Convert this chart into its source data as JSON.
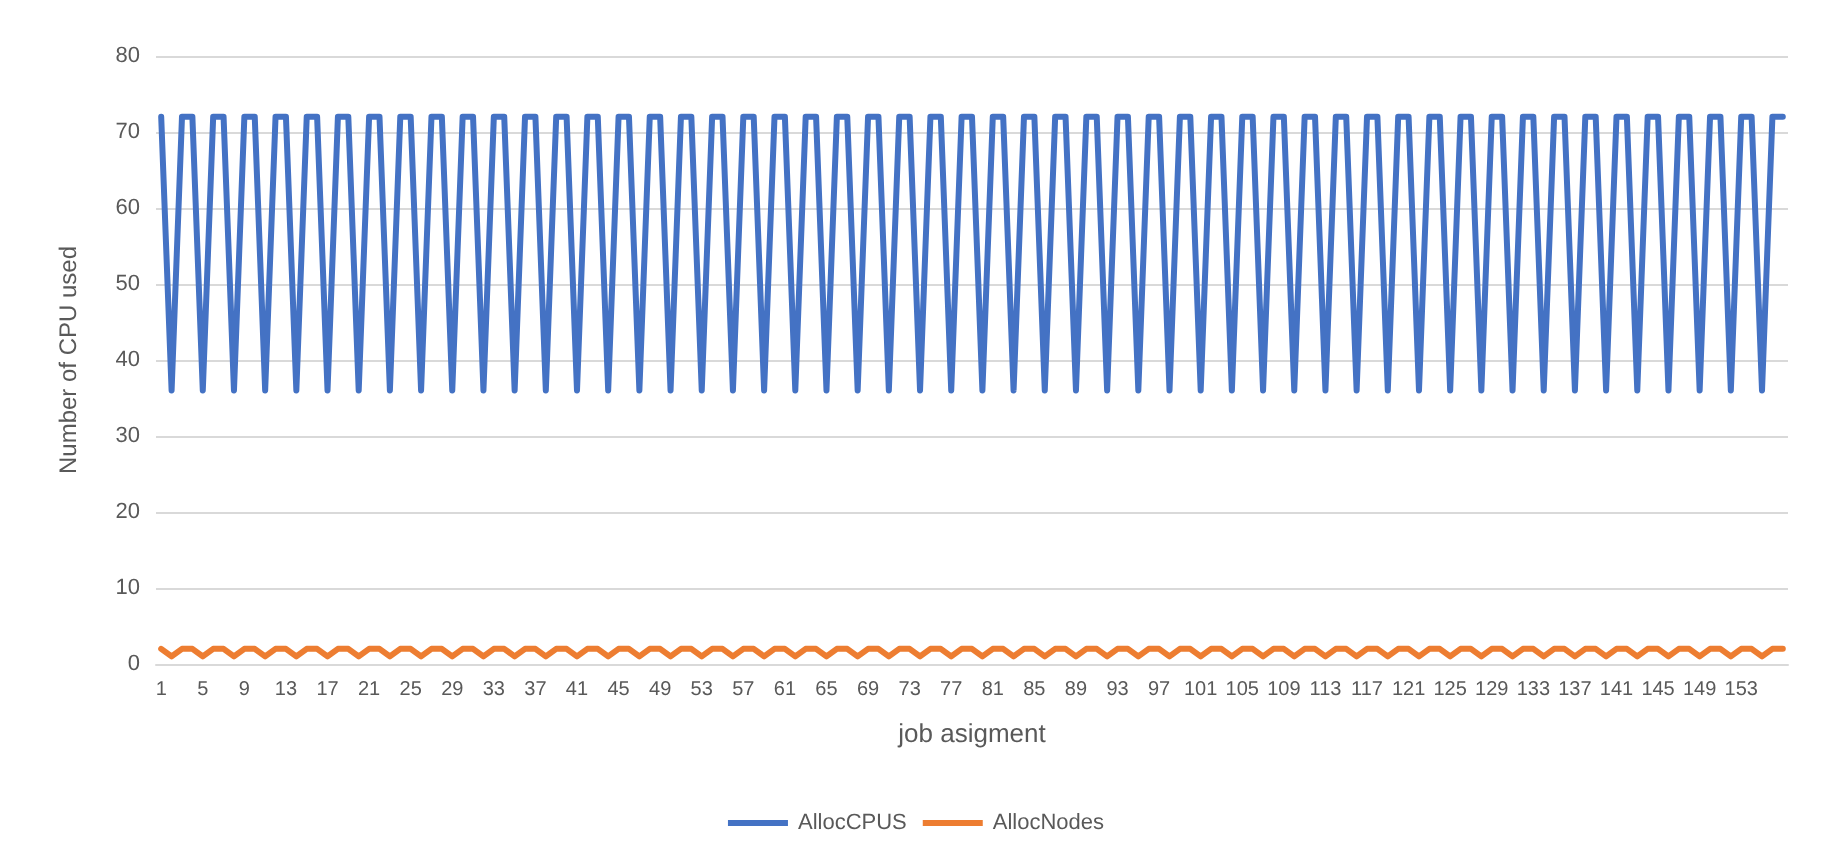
{
  "chart_data": {
    "type": "line",
    "xlabel": "job asigment",
    "ylabel": "Number of CPU used",
    "categories": [
      "1",
      null,
      null,
      null,
      "5",
      null,
      null,
      null,
      "9",
      null,
      null,
      null,
      "13",
      null,
      null,
      null,
      "17",
      null,
      null,
      null,
      "21",
      null,
      null,
      null,
      "25",
      null,
      null,
      null,
      "29",
      null,
      null,
      null,
      "33",
      null,
      null,
      null,
      "37",
      null,
      null,
      null,
      "41",
      null,
      null,
      null,
      "45",
      null,
      null,
      null,
      "49",
      null,
      null,
      null,
      "53",
      null,
      null,
      null,
      "57",
      null,
      null,
      null,
      "61",
      null,
      null,
      null,
      "65",
      null,
      null,
      null,
      "69",
      null,
      null,
      null,
      "73",
      null,
      null,
      null,
      "77",
      null,
      null,
      null,
      "81",
      null,
      null,
      null,
      "85",
      null,
      null,
      null,
      "89",
      null,
      null,
      null,
      "93",
      null,
      null,
      null,
      "97",
      null,
      null,
      null,
      "101",
      null,
      null,
      null,
      "105",
      null,
      null,
      null,
      "109",
      null,
      null,
      null,
      "113",
      null,
      null,
      null,
      "117",
      null,
      null,
      null,
      "121",
      null,
      null,
      null,
      "125",
      null,
      null,
      null,
      "129",
      null,
      null,
      null,
      "133",
      null,
      null,
      null,
      "137",
      null,
      null,
      null,
      "141",
      null,
      null,
      null,
      "145",
      null,
      null,
      null,
      "149",
      null,
      null,
      null,
      "153",
      null,
      null,
      null,
      null
    ],
    "series": [
      {
        "name": "AllocCPUS",
        "color": "#4472c4",
        "values": [
          72,
          36,
          72,
          72,
          36,
          72,
          72,
          36,
          72,
          72,
          36,
          72,
          72,
          36,
          72,
          72,
          36,
          72,
          72,
          36,
          72,
          72,
          36,
          72,
          72,
          36,
          72,
          72,
          36,
          72,
          72,
          36,
          72,
          72,
          36,
          72,
          72,
          36,
          72,
          72,
          36,
          72,
          72,
          36,
          72,
          72,
          36,
          72,
          72,
          36,
          72,
          72,
          36,
          72,
          72,
          36,
          72,
          72,
          36,
          72,
          72,
          36,
          72,
          72,
          36,
          72,
          72,
          36,
          72,
          72,
          36,
          72,
          72,
          36,
          72,
          72,
          36,
          72,
          72,
          36,
          72,
          72,
          36,
          72,
          72,
          36,
          72,
          72,
          36,
          72,
          72,
          36,
          72,
          72,
          36,
          72,
          72,
          36,
          72,
          72,
          36,
          72,
          72,
          36,
          72,
          72,
          36,
          72,
          72,
          36,
          72,
          72,
          36,
          72,
          72,
          36,
          72,
          72,
          36,
          72,
          72,
          36,
          72,
          72,
          36,
          72,
          72,
          36,
          72,
          72,
          36,
          72,
          72,
          36,
          72,
          72,
          36,
          72,
          72,
          36,
          72,
          72,
          36,
          72,
          72,
          36,
          72,
          72,
          36,
          72,
          72,
          36,
          72,
          72,
          36,
          72,
          72
        ]
      },
      {
        "name": "AllocNodes",
        "color": "#ed7d31",
        "values": [
          2,
          1,
          2,
          2,
          1,
          2,
          2,
          1,
          2,
          2,
          1,
          2,
          2,
          1,
          2,
          2,
          1,
          2,
          2,
          1,
          2,
          2,
          1,
          2,
          2,
          1,
          2,
          2,
          1,
          2,
          2,
          1,
          2,
          2,
          1,
          2,
          2,
          1,
          2,
          2,
          1,
          2,
          2,
          1,
          2,
          2,
          1,
          2,
          2,
          1,
          2,
          2,
          1,
          2,
          2,
          1,
          2,
          2,
          1,
          2,
          2,
          1,
          2,
          2,
          1,
          2,
          2,
          1,
          2,
          2,
          1,
          2,
          2,
          1,
          2,
          2,
          1,
          2,
          2,
          1,
          2,
          2,
          1,
          2,
          2,
          1,
          2,
          2,
          1,
          2,
          2,
          1,
          2,
          2,
          1,
          2,
          2,
          1,
          2,
          2,
          1,
          2,
          2,
          1,
          2,
          2,
          1,
          2,
          2,
          1,
          2,
          2,
          1,
          2,
          2,
          1,
          2,
          2,
          1,
          2,
          2,
          1,
          2,
          2,
          1,
          2,
          2,
          1,
          2,
          2,
          1,
          2,
          2,
          1,
          2,
          2,
          1,
          2,
          2,
          1,
          2,
          2,
          1,
          2,
          2,
          1,
          2,
          2,
          1,
          2,
          2,
          1,
          2,
          2,
          1,
          2,
          2
        ]
      }
    ],
    "ylim": [
      0,
      80
    ],
    "yticks": [
      0,
      10,
      20,
      30,
      40,
      50,
      60,
      70,
      80
    ],
    "grid": "y",
    "legend": "bottom",
    "marker": "none",
    "line_style": "solid"
  }
}
